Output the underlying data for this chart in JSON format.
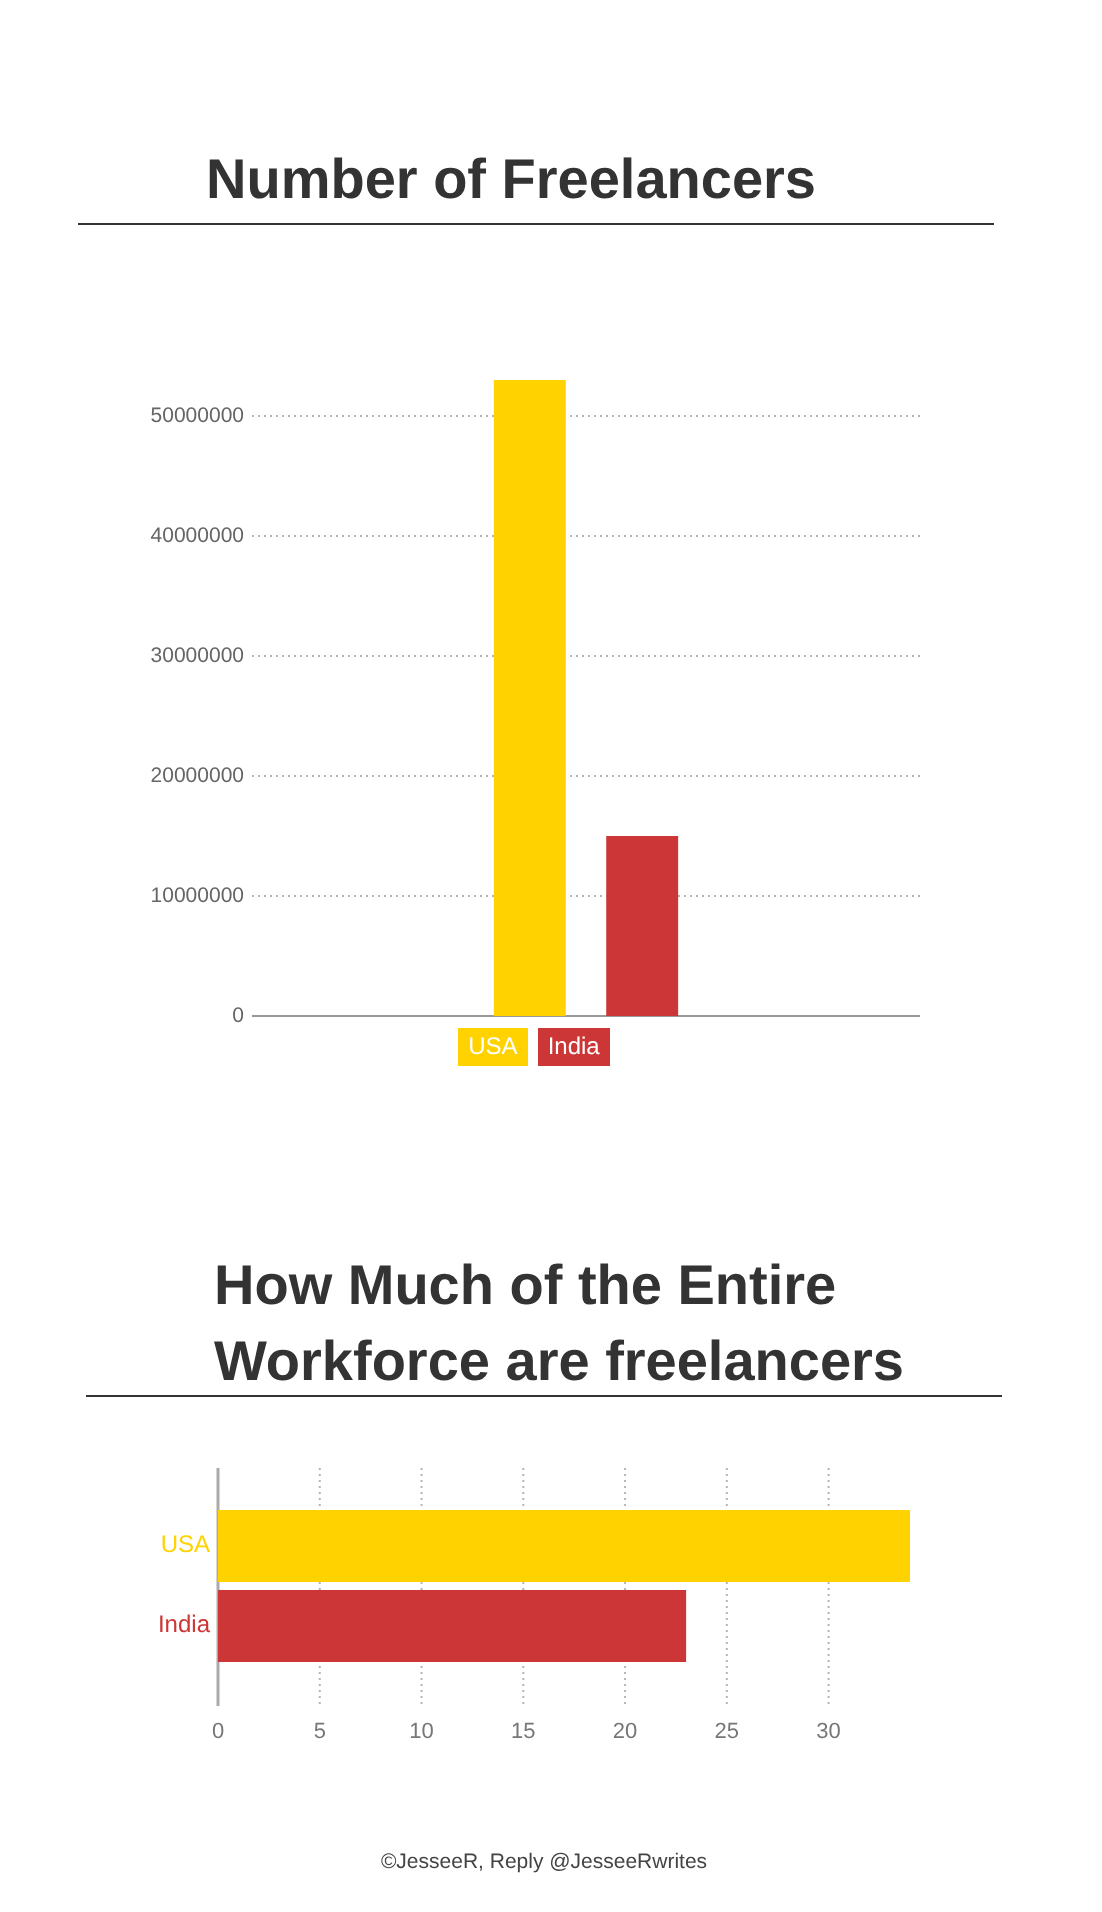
{
  "chart_data": [
    {
      "type": "bar",
      "title": "Number of Freelancers",
      "categories": [
        null
      ],
      "series": [
        {
          "name": "USA",
          "color": "#ffd200",
          "values": [
            53000000
          ]
        },
        {
          "name": "India",
          "color": "#cc3636",
          "values": [
            15000000
          ]
        }
      ],
      "ylim": [
        0,
        53000000
      ],
      "yticks": [
        0,
        10000000,
        20000000,
        30000000,
        40000000,
        50000000
      ],
      "grid": "y",
      "legend": "bottom"
    },
    {
      "type": "bar",
      "orientation": "horizontal",
      "title": "How Much of the Entire Workforce are freelancers",
      "categories": [
        "USA",
        "India"
      ],
      "values": [
        34,
        23
      ],
      "colors": [
        "#ffd200",
        "#cc3636"
      ],
      "xlim": [
        0,
        34
      ],
      "xticks": [
        0,
        5,
        10,
        15,
        20,
        25,
        30
      ],
      "grid": "x",
      "annotations": [
        "©JesseeR, Reply @JesseeRwrites"
      ]
    }
  ]
}
